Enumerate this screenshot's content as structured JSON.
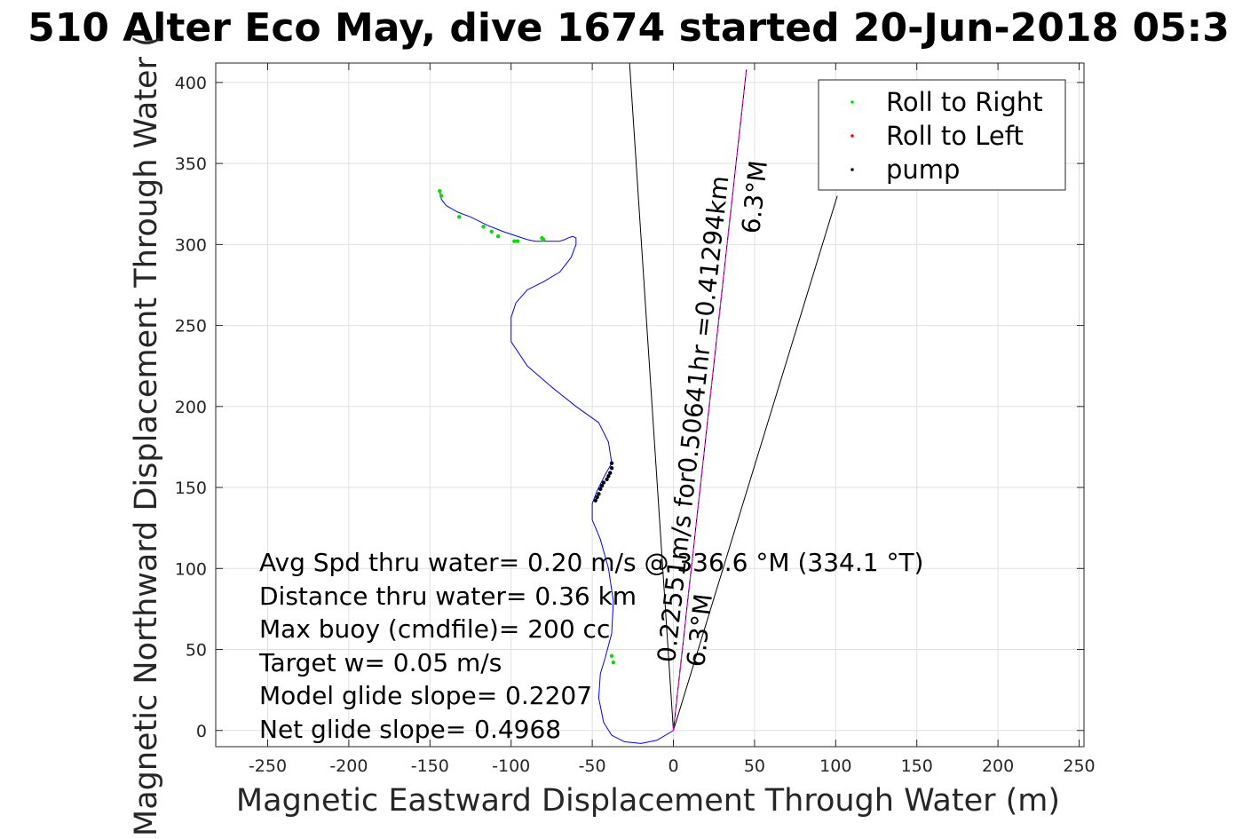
{
  "chart_data": {
    "type": "line",
    "title": "510 Alter Eco May, dive 1674 started 20-Jun-2018 05:3",
    "xlabel": "Magnetic Eastward Displacement Through Water (m)",
    "ylabel": "Magnetic Northward Displacement Through Water (",
    "xlim": [
      -282,
      253
    ],
    "ylim": [
      -10,
      412
    ],
    "xticks": [
      -250,
      -200,
      -150,
      -100,
      -50,
      0,
      50,
      100,
      150,
      200,
      250
    ],
    "yticks": [
      0,
      50,
      100,
      150,
      200,
      250,
      300,
      350,
      400
    ],
    "grid": true,
    "legend_position": "top-right",
    "legend": [
      {
        "label": "Roll to Right",
        "color": "#00e000"
      },
      {
        "label": "Roll to Left",
        "color": "#ff0000"
      },
      {
        "label": "pump",
        "color": "#000000"
      }
    ],
    "series": [
      {
        "name": "track",
        "color": "#0000ff",
        "x": [
          0,
          -10,
          -20,
          -30,
          -38,
          -43,
          -46,
          -45,
          -42,
          -38,
          -37,
          -40,
          -45,
          -50,
          -50,
          -47,
          -42,
          -38,
          -40,
          -46,
          -60,
          -75,
          -90,
          -100,
          -100,
          -97,
          -90,
          -80,
          -70,
          -63,
          -60,
          -60,
          -62,
          -65,
          -67,
          -70,
          -75,
          -80,
          -85,
          -90,
          -96,
          -105,
          -115,
          -125,
          -133,
          -140,
          -143,
          -144
        ],
        "y": [
          0,
          -6,
          -8,
          -7,
          -3,
          5,
          20,
          35,
          45,
          60,
          80,
          100,
          118,
          130,
          140,
          148,
          158,
          165,
          178,
          190,
          200,
          212,
          225,
          240,
          255,
          264,
          272,
          277,
          283,
          292,
          300,
          304,
          305,
          304,
          303,
          302,
          302,
          302,
          302,
          303,
          305,
          308,
          312,
          317,
          320,
          324,
          328,
          333
        ]
      },
      {
        "name": "Roll to Right",
        "color": "#00e000",
        "marker": "dot",
        "x": [
          -144,
          -143,
          -132,
          -117,
          -112,
          -108,
          -98,
          -96,
          -80,
          -81,
          -38,
          -37
        ],
        "y": [
          333,
          330,
          317,
          311,
          308,
          305,
          302,
          302,
          303,
          304,
          46,
          42
        ]
      },
      {
        "name": "pump",
        "color": "#000000",
        "marker": "dot",
        "x": [
          -38,
          -38,
          -39,
          -40,
          -41,
          -43,
          -44,
          -45,
          -46,
          -47,
          -48
        ],
        "y": [
          165,
          162,
          159,
          157,
          155,
          153,
          151,
          149,
          146,
          144,
          142
        ]
      },
      {
        "name": "ref-line-1",
        "color": "#000000",
        "x": [
          0,
          -27
        ],
        "y": [
          0,
          412
        ]
      },
      {
        "name": "ref-line-2",
        "color": "#000000",
        "x": [
          0,
          101
        ],
        "y": [
          0,
          330
        ]
      },
      {
        "name": "ref-line-3",
        "color": "#000000",
        "x": [
          0,
          45
        ],
        "y": [
          0,
          408
        ]
      },
      {
        "name": "ref-line-magenta",
        "color": "#ff00ff",
        "style": "dashed",
        "x": [
          0,
          45
        ],
        "y": [
          0,
          408
        ]
      }
    ],
    "annotations": [
      "Avg Spd thru water=  0.20 m/s @ 336.6 °M (334.1 °T)",
      "Distance thru water=  0.36 km",
      "Max buoy (cmdfile)= 200 cc",
      "Target w= 0.05 m/s",
      "Model glide slope= 0.2207",
      "Net glide slope= 0.4968"
    ],
    "rotated_labels": [
      "0.22551m/s for0.50641hr =0.41294km",
      "6.3°M",
      "6.3°M"
    ]
  }
}
